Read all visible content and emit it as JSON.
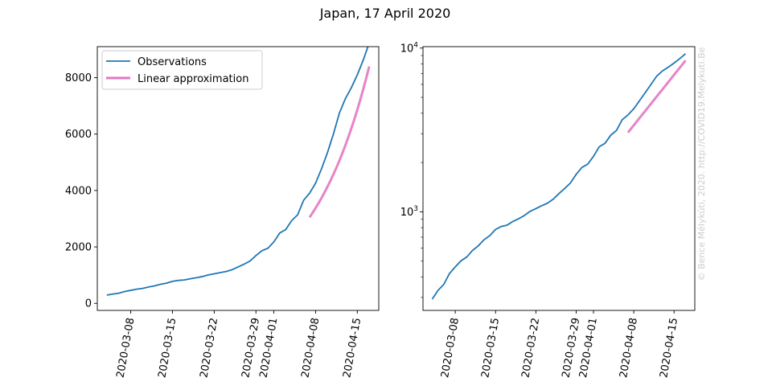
{
  "figure": {
    "title": "Japan, 17 April 2020",
    "watermark": "© Bence Mélykúti, 2020. http://COVID19.Melykuti.Be"
  },
  "colors": {
    "observations": "#1f77b4",
    "linear": "#e377c2",
    "axis": "#000000",
    "watermark": "#cccccc"
  },
  "chart_data": [
    {
      "type": "line",
      "x": [
        "2020-03-04",
        "2020-03-05",
        "2020-03-06",
        "2020-03-07",
        "2020-03-08",
        "2020-03-09",
        "2020-03-10",
        "2020-03-11",
        "2020-03-12",
        "2020-03-13",
        "2020-03-14",
        "2020-03-15",
        "2020-03-16",
        "2020-03-17",
        "2020-03-18",
        "2020-03-19",
        "2020-03-20",
        "2020-03-21",
        "2020-03-22",
        "2020-03-23",
        "2020-03-24",
        "2020-03-25",
        "2020-03-26",
        "2020-03-27",
        "2020-03-28",
        "2020-03-29",
        "2020-03-30",
        "2020-03-31",
        "2020-04-01",
        "2020-04-02",
        "2020-04-03",
        "2020-04-04",
        "2020-04-05",
        "2020-04-06",
        "2020-04-07",
        "2020-04-08",
        "2020-04-09",
        "2020-04-10",
        "2020-04-11",
        "2020-04-12",
        "2020-04-13",
        "2020-04-14",
        "2020-04-15",
        "2020-04-16",
        "2020-04-17"
      ],
      "series": [
        {
          "name": "Observations",
          "values": [
            293,
            331,
            360,
            420,
            461,
            502,
            530,
            581,
            620,
            675,
            716,
            780,
            814,
            829,
            873,
            907,
            949,
            1007,
            1046,
            1089,
            1128,
            1193,
            1291,
            1387,
            1499,
            1693,
            1866,
            1953,
            2178,
            2495,
            2617,
            2935,
            3139,
            3654,
            3906,
            4257,
            4768,
            5347,
            6005,
            6748,
            7255,
            7645,
            8100,
            8626,
            9231
          ]
        },
        {
          "name": "Linear approximation",
          "x": [
            "2020-04-07",
            "2020-04-17"
          ],
          "values": [
            3050,
            8400
          ]
        }
      ],
      "yticks": [
        0,
        2000,
        4000,
        6000,
        8000
      ],
      "ytick_labels": [
        "0",
        "2000",
        "4000",
        "6000",
        "8000"
      ],
      "ylim": [
        -250,
        9100
      ],
      "xticks": [
        "2020-03-08",
        "2020-03-15",
        "2020-03-22",
        "2020-03-29",
        "2020-04-01",
        "2020-04-08",
        "2020-04-15"
      ],
      "legend": "top-left",
      "grid": false
    },
    {
      "type": "line",
      "yscale": "log",
      "series_ref": "same as chart 1",
      "yticks": [
        1000,
        10000
      ],
      "ytick_labels": [
        {
          "base": "10",
          "exp": "3"
        },
        {
          "base": "10",
          "exp": "4"
        }
      ],
      "ylim": [
        250,
        10200
      ],
      "xticks": [
        "2020-03-08",
        "2020-03-15",
        "2020-03-22",
        "2020-03-29",
        "2020-04-01",
        "2020-04-08",
        "2020-04-15"
      ],
      "grid": false
    }
  ]
}
